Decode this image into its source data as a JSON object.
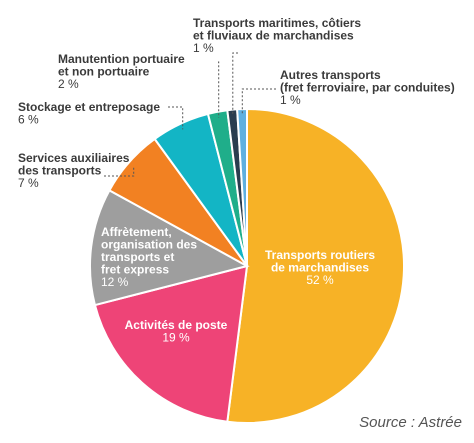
{
  "chart_data": {
    "type": "pie",
    "title": "",
    "source": "Source : Astrée",
    "slices": [
      {
        "lines": [
          "Transports routiers",
          "de marchandises"
        ],
        "value": 52,
        "value_label": "52 %",
        "color": "#F7B226"
      },
      {
        "lines": [
          "Activités de poste"
        ],
        "value": 19,
        "value_label": "19 %",
        "color": "#EE4477"
      },
      {
        "lines": [
          "Affrètement,",
          "organisation des",
          "transports et",
          "fret express"
        ],
        "value": 12,
        "value_label": "12 %",
        "color": "#9E9E9E"
      },
      {
        "lines": [
          "Services auxiliaires",
          "des transports"
        ],
        "value": 7,
        "value_label": "7 %",
        "color": "#F28122"
      },
      {
        "lines": [
          "Stockage et entreposage"
        ],
        "value": 6,
        "value_label": "6 %",
        "color": "#13B5C5"
      },
      {
        "lines": [
          "Manutention portuaire",
          "et non portuaire"
        ],
        "value": 2,
        "value_label": "2 %",
        "color": "#1FAE8A"
      },
      {
        "lines": [
          "Transports maritimes, côtiers",
          "et fluviaux de marchandises"
        ],
        "value": 1,
        "value_label": "1 %",
        "color": "#2A3D4F"
      },
      {
        "lines": [
          "Autres transports",
          "(fret ferroviaire, par conduites)"
        ],
        "value": 1,
        "value_label": "1 %",
        "color": "#5FB0DF"
      }
    ]
  }
}
